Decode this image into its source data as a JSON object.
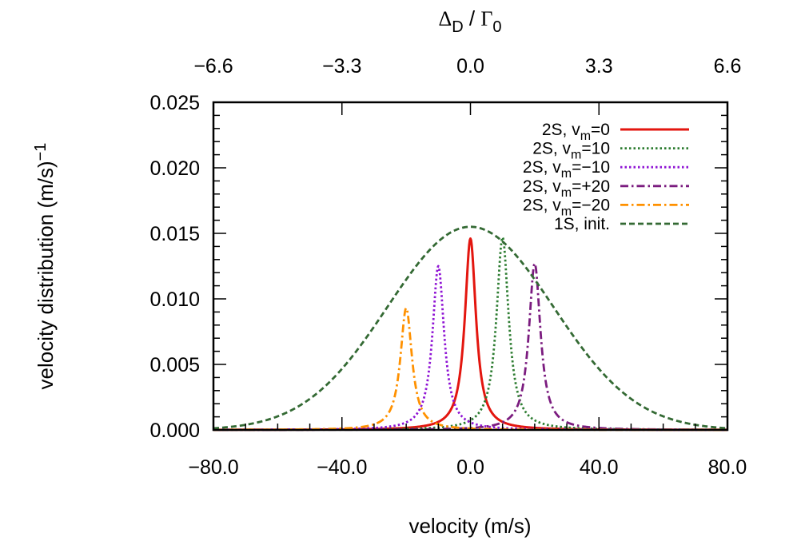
{
  "chart_data": {
    "type": "line",
    "xlabel": "velocity (m/s)",
    "ylabel_main": "velocity distribution (m/s)",
    "ylabel_sup": "−1",
    "top_axis": {
      "label": {
        "delta": "Δ",
        "delta_sub": "D",
        "slash": " / ",
        "gamma": "Γ",
        "gamma_sub": "0"
      },
      "ticks": [
        {
          "label": "−6.6",
          "velocity": -80
        },
        {
          "label": "−3.3",
          "velocity": -40
        },
        {
          "label": "0.0",
          "velocity": 0
        },
        {
          "label": "3.3",
          "velocity": 40
        },
        {
          "label": "6.6",
          "velocity": 80
        }
      ]
    },
    "xlim": [
      -80,
      80
    ],
    "ylim": [
      0,
      0.025
    ],
    "x_ticks": [
      {
        "label": "−80.0",
        "value": -80
      },
      {
        "label": "−40.0",
        "value": -40
      },
      {
        "label": "0.0",
        "value": 0
      },
      {
        "label": "40.0",
        "value": 40
      },
      {
        "label": "80.0",
        "value": 80
      }
    ],
    "x_minor_step": 10,
    "y_ticks": [
      {
        "label": "0.000",
        "value": 0
      },
      {
        "label": "0.005",
        "value": 0.005
      },
      {
        "label": "0.010",
        "value": 0.01
      },
      {
        "label": "0.015",
        "value": 0.015
      },
      {
        "label": "0.020",
        "value": 0.02
      },
      {
        "label": "0.025",
        "value": 0.025
      }
    ],
    "y_minor_step": 0.001,
    "grid": false,
    "legend_position": "top-right",
    "series": [
      {
        "label_main": "2S, v",
        "label_sub": "m",
        "label_tail": "=0",
        "color": "#e3160f",
        "dash": "solid",
        "shape": "lorentz",
        "center": 0,
        "peak": 0.0146,
        "hwhm": 2.1
      },
      {
        "label_main": "2S, v",
        "label_sub": "m",
        "label_tail": "=10",
        "color": "#2e7d32",
        "dash": "dotted",
        "shape": "lorentz",
        "center": 10,
        "peak": 0.0147,
        "hwhm": 2.3
      },
      {
        "label_main": "2S, v",
        "label_sub": "m",
        "label_tail": "=−10",
        "color": "#8f14d4",
        "dash": "dotted",
        "shape": "lorentz",
        "center": -10,
        "peak": 0.0125,
        "hwhm": 2.2
      },
      {
        "label_main": "2S, v",
        "label_sub": "m",
        "label_tail": "=+20",
        "color": "#7b1c7f",
        "dash": "dashdot",
        "shape": "lorentz",
        "center": 20,
        "peak": 0.0127,
        "hwhm": 2.2
      },
      {
        "label_main": "2S, v",
        "label_sub": "m",
        "label_tail": "=−20",
        "color": "#ff9100",
        "dash": "dashdot",
        "shape": "lorentz",
        "center": -20,
        "peak": 0.0093,
        "hwhm": 2.2
      },
      {
        "label_main": "1S, init.",
        "label_sub": "",
        "label_tail": "",
        "color": "#346a34",
        "dash": "dashed",
        "shape": "gauss",
        "center": 0,
        "peak": 0.0155,
        "sigma": 25.8
      }
    ]
  }
}
